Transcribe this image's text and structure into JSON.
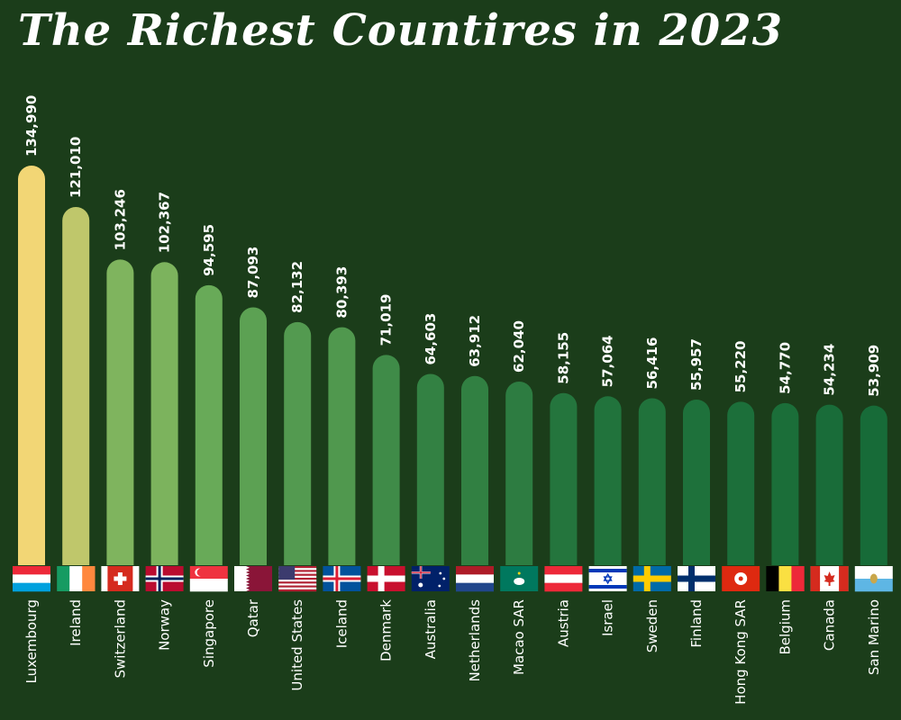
{
  "chart_data": {
    "type": "bar",
    "title": "The Richest Countires in 2023",
    "xlabel": "",
    "ylabel": "",
    "ylim": [
      0,
      140000
    ],
    "grid": false,
    "categories": [
      "Luxembourg",
      "Ireland",
      "Switzerland",
      "Norway",
      "Singapore",
      "Qatar",
      "United States",
      "Iceland",
      "Denmark",
      "Australia",
      "Netherlands",
      "Macao SAR",
      "Austria",
      "Israel",
      "Sweden",
      "Finland",
      "Hong Kong SAR",
      "Belgium",
      "Canada",
      "San Marino"
    ],
    "values": [
      134990,
      121010,
      103246,
      102367,
      94595,
      87093,
      82132,
      80393,
      71019,
      64603,
      63912,
      62040,
      58155,
      57064,
      56416,
      55957,
      55220,
      54770,
      54234,
      53909
    ],
    "value_labels": [
      "134,990",
      "121,010",
      "103,246",
      "102,367",
      "94,595",
      "87,093",
      "82,132",
      "80,393",
      "71,019",
      "64,603",
      "63,912",
      "62,040",
      "58,155",
      "57,064",
      "56,416",
      "55,957",
      "55,220",
      "54,770",
      "54,234",
      "53,909"
    ],
    "flags": [
      "luxembourg-flag-icon",
      "ireland-flag-icon",
      "switzerland-flag-icon",
      "norway-flag-icon",
      "singapore-flag-icon",
      "qatar-flag-icon",
      "united-states-flag-icon",
      "iceland-flag-icon",
      "denmark-flag-icon",
      "australia-flag-icon",
      "netherlands-flag-icon",
      "macao-flag-icon",
      "austria-flag-icon",
      "israel-flag-icon",
      "sweden-flag-icon",
      "finland-flag-icon",
      "hong-kong-flag-icon",
      "belgium-flag-icon",
      "canada-flag-icon",
      "san-marino-flag-icon"
    ],
    "colors": {
      "background": "#1b3d1a",
      "bar_high": "#f2d675",
      "bar_low": "#176b38",
      "text": "#ffffff"
    }
  }
}
